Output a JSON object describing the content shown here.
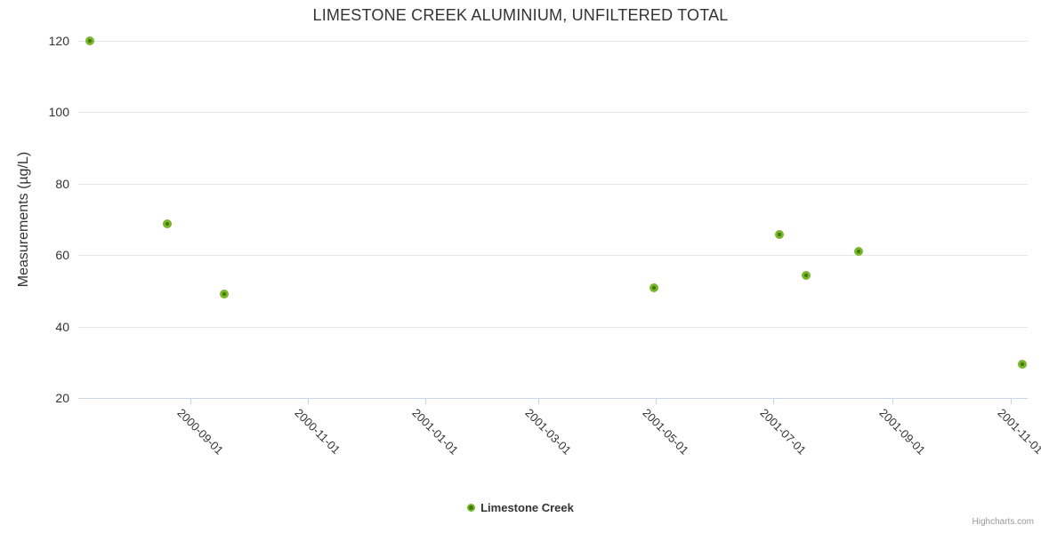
{
  "chart_data": {
    "type": "scatter",
    "title": "LIMESTONE CREEK ALUMINIUM, UNFILTERED TOTAL",
    "xlabel": "",
    "ylabel": "Measurements (µg/L)",
    "ylim": [
      20,
      120
    ],
    "yticks": [
      20,
      40,
      60,
      80,
      100,
      120
    ],
    "xticks": [
      "2000-09-01",
      "2000-11-01",
      "2001-01-01",
      "2001-03-01",
      "2001-05-01",
      "2001-07-01",
      "2001-09-01",
      "2001-11-01"
    ],
    "x_range": [
      "2000-07-05",
      "2001-11-10"
    ],
    "grid": "horizontal-only",
    "legend_position": "bottom-center",
    "series": [
      {
        "name": "Limestone Creek",
        "marker_ring_color": "#7ab62a",
        "marker_core_color": "#3e7a00",
        "points": [
          {
            "x": "2000-07-11",
            "y": 120
          },
          {
            "x": "2000-08-20",
            "y": 68.7
          },
          {
            "x": "2000-09-19",
            "y": 49.1
          },
          {
            "x": "2001-04-30",
            "y": 50.8
          },
          {
            "x": "2001-07-04",
            "y": 65.8
          },
          {
            "x": "2001-07-18",
            "y": 54.3
          },
          {
            "x": "2001-08-14",
            "y": 61
          },
          {
            "x": "2001-11-07",
            "y": 29.5
          }
        ]
      }
    ]
  },
  "credits": {
    "text": "Highcharts.com"
  },
  "colors": {
    "title_text": "#333333",
    "tick_label_text": "#333333",
    "grid_line": "#e6e6e6",
    "axis_line": "#ccd6eb",
    "legend_text": "#333333",
    "credits_text": "#999999",
    "series_green_ring": "#7ab62a",
    "series_green_core": "#3e7a00"
  }
}
